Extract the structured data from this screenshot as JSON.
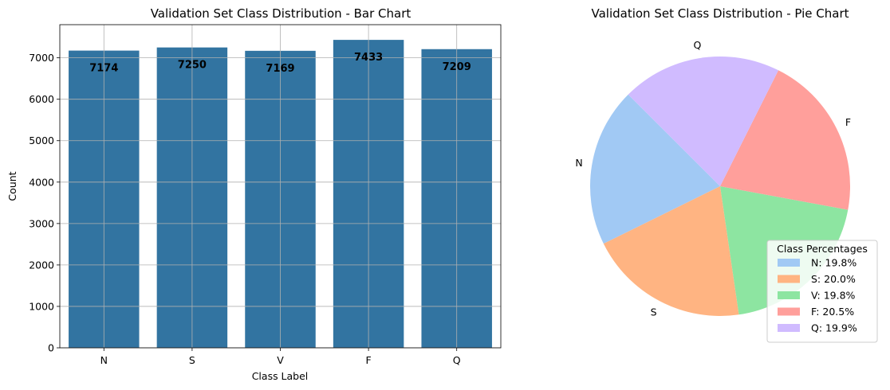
{
  "chart_data": [
    {
      "type": "bar",
      "title": "Validation Set Class Distribution - Bar Chart",
      "xlabel": "Class Label",
      "ylabel": "Count",
      "categories": [
        "N",
        "S",
        "V",
        "F",
        "Q"
      ],
      "values": [
        7174,
        7250,
        7169,
        7433,
        7209
      ],
      "data_labels": [
        "7174",
        "7250",
        "7169",
        "7433",
        "7209"
      ],
      "ylim": [
        0,
        7800
      ],
      "yticks": [
        0,
        1000,
        2000,
        3000,
        4000,
        5000,
        6000,
        7000
      ],
      "ytick_labels": [
        "0",
        "1000",
        "2000",
        "3000",
        "4000",
        "5000",
        "6000",
        "7000"
      ],
      "grid": true,
      "bar_color": "#3274a1"
    },
    {
      "type": "pie",
      "title": "Validation Set Class Distribution - Pie Chart",
      "categories": [
        "N",
        "S",
        "V",
        "F",
        "Q"
      ],
      "values": [
        7174,
        7250,
        7169,
        7433,
        7209
      ],
      "colors": [
        "#a1c9f4",
        "#ffb482",
        "#8de5a1",
        "#ff9f9b",
        "#d0bbff"
      ],
      "labels": [
        "N",
        "S",
        "",
        "F",
        "Q"
      ],
      "legend": {
        "title": "Class Percentages",
        "placement": "lower-right",
        "entries": [
          "N: 19.8%",
          "S: 20.0%",
          "V: 19.8%",
          "F: 20.5%",
          "Q: 19.9%"
        ]
      }
    }
  ]
}
